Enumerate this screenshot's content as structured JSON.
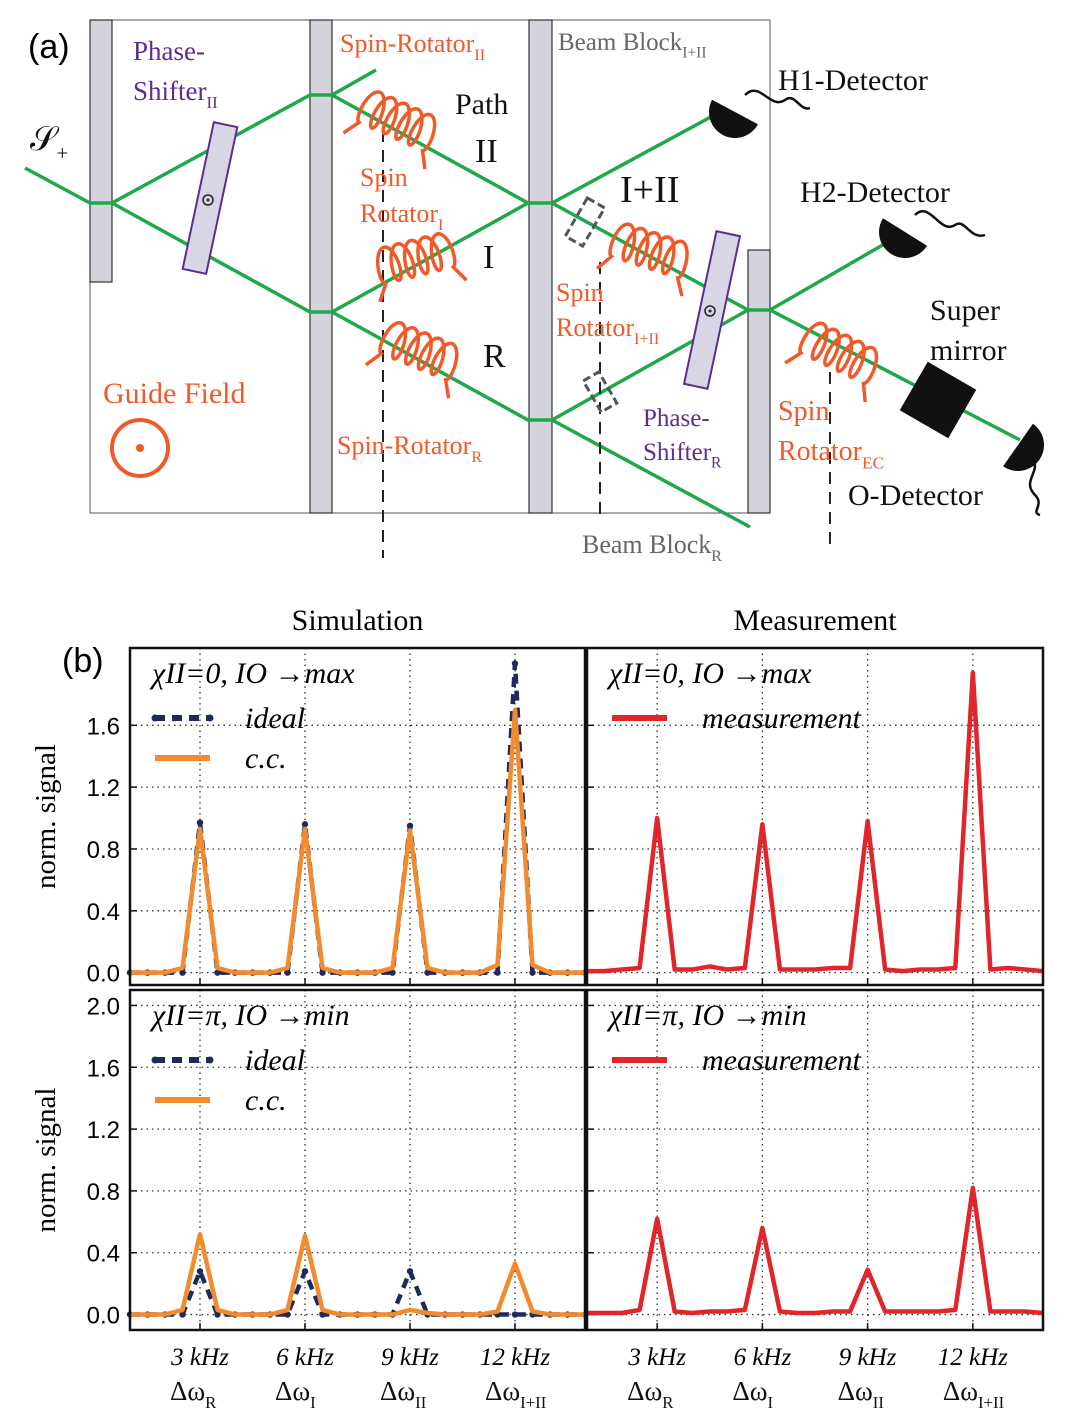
{
  "panel_labels": [
    "(a)",
    "(b)"
  ],
  "diagram": {
    "labels": [
      {
        "text": "Phase-"
      },
      {
        "text": "Shifter",
        "sub": "II"
      },
      {
        "text": "Spin-Rotator",
        "sub": "II"
      },
      {
        "text": "Beam Block",
        "sub": "I+II"
      },
      {
        "text": "H1-Detector"
      },
      {
        "text": "𝒮",
        "sub": "+"
      },
      {
        "text": "Path"
      },
      {
        "text": "II"
      },
      {
        "text": "Spin"
      },
      {
        "text": "Rotator",
        "sub": "I"
      },
      {
        "text": "I"
      },
      {
        "text": "R"
      },
      {
        "text": "I+II"
      },
      {
        "text": "H2-Detector"
      },
      {
        "text": "Spin"
      },
      {
        "text": "Rotator",
        "sub": "I+II"
      },
      {
        "text": "Super"
      },
      {
        "text": "mirror"
      },
      {
        "text": "Guide Field"
      },
      {
        "text": "Spin-Rotator",
        "sub": "R"
      },
      {
        "text": "Phase-"
      },
      {
        "text": "Shifter",
        "sub": "R"
      },
      {
        "text": "Spin"
      },
      {
        "text": "Rotator",
        "sub": "EC"
      },
      {
        "text": "O-Detector"
      },
      {
        "text": "Beam Block",
        "sub": "R"
      }
    ]
  },
  "chart_data": [
    {
      "type": "line",
      "title": "Simulation",
      "ylabel": "norm. signal",
      "annotation": "χII=0, IO →max",
      "x": [
        1,
        1.5,
        2,
        2.5,
        3,
        3.5,
        4,
        4.5,
        5,
        5.5,
        6,
        6.5,
        7,
        7.5,
        8,
        8.5,
        9,
        9.5,
        10,
        10.5,
        11,
        11.5,
        12,
        12.5,
        13,
        13.5,
        14
      ],
      "xlim": [
        1,
        14
      ],
      "xticks": [
        3,
        6,
        9,
        12
      ],
      "ylim": [
        -0.08,
        2.1
      ],
      "yticks": [
        {
          "value": 0,
          "label": "0.0"
        },
        {
          "value": 0.4,
          "label": "0.4"
        },
        {
          "value": 0.8,
          "label": "0.8"
        },
        {
          "value": 1.2,
          "label": "1.2"
        },
        {
          "value": 1.6,
          "label": "1.6"
        }
      ],
      "grid": true,
      "series": [
        {
          "name": "ideal",
          "color": "#1f2a5c",
          "linestyle": "dashed",
          "marker": true,
          "values": [
            0,
            0,
            0,
            0,
            0.97,
            0,
            0,
            0,
            0,
            0,
            0.96,
            0,
            0,
            0,
            0,
            0,
            0.95,
            0,
            0,
            0,
            0,
            0,
            2.0,
            0,
            0,
            0,
            0
          ]
        },
        {
          "name": "c.c.",
          "color": "#f28a2e",
          "linestyle": "solid",
          "marker": false,
          "values": [
            0,
            0,
            0,
            0.03,
            0.93,
            0.03,
            0,
            0,
            0,
            0.03,
            0.93,
            0.03,
            0,
            0,
            0,
            0.03,
            0.92,
            0.03,
            0,
            0,
            0,
            0.05,
            1.7,
            0.05,
            0,
            0,
            0
          ]
        }
      ]
    },
    {
      "type": "line",
      "title": "Measurement",
      "annotation": "χII=0, IO →max",
      "x": [
        1,
        1.5,
        2,
        2.5,
        3,
        3.5,
        4,
        4.5,
        5,
        5.5,
        6,
        6.5,
        7,
        7.5,
        8,
        8.5,
        9,
        9.5,
        10,
        10.5,
        11,
        11.5,
        12,
        12.5,
        13,
        13.5,
        14
      ],
      "xlim": [
        1,
        14
      ],
      "xticks": [
        3,
        6,
        9,
        12
      ],
      "ylim": [
        -0.08,
        2.1
      ],
      "yticks": [
        0,
        0.4,
        0.8,
        1.2,
        1.6
      ],
      "grid": true,
      "series": [
        {
          "name": "measurement",
          "color": "#e0252b",
          "linestyle": "solid",
          "marker": false,
          "values": [
            0.01,
            0.01,
            0.02,
            0.03,
            1.0,
            0.02,
            0.02,
            0.04,
            0.02,
            0.03,
            0.96,
            0.02,
            0.02,
            0.02,
            0.03,
            0.03,
            0.98,
            0.02,
            0.01,
            0.02,
            0.02,
            0.03,
            1.94,
            0.02,
            0.03,
            0.02,
            0.01
          ]
        }
      ]
    },
    {
      "type": "line",
      "ylabel": "norm. signal",
      "annotation": "χII=π, IO →min",
      "x": [
        1,
        1.5,
        2,
        2.5,
        3,
        3.5,
        4,
        4.5,
        5,
        5.5,
        6,
        6.5,
        7,
        7.5,
        8,
        8.5,
        9,
        9.5,
        10,
        10.5,
        11,
        11.5,
        12,
        12.5,
        13,
        13.5,
        14
      ],
      "xlim": [
        1,
        14
      ],
      "xticks": [
        {
          "value": 3,
          "label": "3 kHz"
        },
        {
          "value": 6,
          "label": "6 kHz"
        },
        {
          "value": 9,
          "label": "9 kHz"
        },
        {
          "value": 12,
          "label": "12 kHz"
        }
      ],
      "xtick_sublabels": [
        {
          "text": "Δω",
          "sub": "R"
        },
        {
          "text": "Δω",
          "sub": "I"
        },
        {
          "text": "Δω",
          "sub": "II"
        },
        {
          "text": "Δω",
          "sub": "I+II"
        }
      ],
      "ylim": [
        -0.1,
        2.1
      ],
      "yticks": [
        {
          "value": 0,
          "label": "0.0"
        },
        {
          "value": 0.4,
          "label": "0.4"
        },
        {
          "value": 0.8,
          "label": "0.8"
        },
        {
          "value": 1.2,
          "label": "1.2"
        },
        {
          "value": 1.6,
          "label": "1.6"
        },
        {
          "value": 2.0,
          "label": "2.0"
        }
      ],
      "grid": true,
      "series": [
        {
          "name": "ideal",
          "color": "#1f2a5c",
          "linestyle": "dashed",
          "marker": true,
          "values": [
            0,
            0,
            0,
            0,
            0.28,
            0,
            0,
            0,
            0,
            0,
            0.28,
            0,
            0,
            0,
            0,
            0,
            0.28,
            0,
            0,
            0,
            0,
            0,
            0,
            0,
            0,
            0,
            0
          ]
        },
        {
          "name": "c.c.",
          "color": "#f28a2e",
          "linestyle": "solid",
          "marker": false,
          "values": [
            0,
            0,
            0,
            0.03,
            0.52,
            0.03,
            0,
            0,
            0,
            0.03,
            0.51,
            0.03,
            0,
            0,
            0,
            0,
            0.03,
            0.01,
            0,
            0,
            0,
            0.02,
            0.33,
            0.02,
            0,
            0,
            0
          ]
        }
      ]
    },
    {
      "type": "line",
      "annotation": "χII=π, IO →min",
      "x": [
        1,
        1.5,
        2,
        2.5,
        3,
        3.5,
        4,
        4.5,
        5,
        5.5,
        6,
        6.5,
        7,
        7.5,
        8,
        8.5,
        9,
        9.5,
        10,
        10.5,
        11,
        11.5,
        12,
        12.5,
        13,
        13.5,
        14
      ],
      "xlim": [
        1,
        14
      ],
      "xticks": [
        {
          "value": 3,
          "label": "3 kHz"
        },
        {
          "value": 6,
          "label": "6 kHz"
        },
        {
          "value": 9,
          "label": "9 kHz"
        },
        {
          "value": 12,
          "label": "12 kHz"
        }
      ],
      "xtick_sublabels": [
        {
          "text": "Δω",
          "sub": "R"
        },
        {
          "text": "Δω",
          "sub": "I"
        },
        {
          "text": "Δω",
          "sub": "II"
        },
        {
          "text": "Δω",
          "sub": "I+II"
        }
      ],
      "ylim": [
        -0.1,
        2.1
      ],
      "yticks": [
        0,
        0.4,
        0.8,
        1.2,
        1.6,
        2.0
      ],
      "grid": true,
      "series": [
        {
          "name": "measurement",
          "color": "#e0252b",
          "linestyle": "solid",
          "marker": false,
          "values": [
            0.01,
            0.01,
            0.01,
            0.03,
            0.62,
            0.02,
            0.01,
            0.02,
            0.02,
            0.03,
            0.56,
            0.02,
            0.01,
            0.01,
            0.02,
            0.02,
            0.29,
            0.02,
            0.02,
            0.02,
            0.02,
            0.03,
            0.82,
            0.02,
            0.02,
            0.02,
            0.01
          ]
        }
      ]
    }
  ]
}
